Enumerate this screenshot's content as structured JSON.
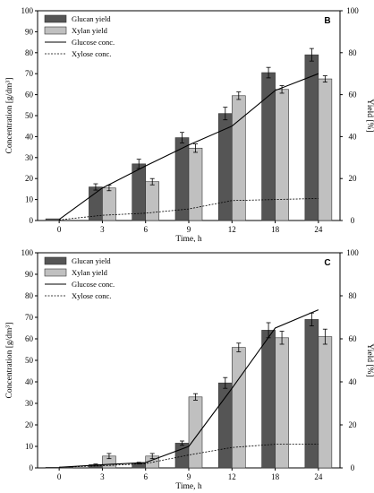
{
  "chart_data": [
    {
      "type": "bar",
      "panel_label": "B",
      "categories": [
        "0",
        "3",
        "6",
        "9",
        "12",
        "18",
        "24"
      ],
      "xlabel": "Time, h",
      "ylabel": "Concentration [g/dm³]",
      "y2label": "Yield [%]",
      "ylim": [
        0,
        100
      ],
      "y2lim": [
        0,
        100
      ],
      "yticks": [
        0,
        10,
        20,
        30,
        40,
        50,
        60,
        70,
        80,
        90,
        100
      ],
      "y2ticks": [
        0,
        20,
        40,
        60,
        80,
        100
      ],
      "legend_position": "top-left",
      "series": [
        {
          "name": "Glucan yield",
          "kind": "bar",
          "axis": "right",
          "color": "#555555",
          "values": [
            0.8,
            16,
            27,
            39.5,
            51,
            70.5,
            79
          ],
          "errors": [
            0,
            1.5,
            2.2,
            2.5,
            3,
            2.5,
            3
          ]
        },
        {
          "name": "Xylan yield",
          "kind": "bar",
          "axis": "right",
          "color": "#c0c0c0",
          "values": [
            null,
            15.5,
            18.5,
            34.5,
            59.5,
            62.5,
            67.5
          ],
          "errors": [
            0,
            1.3,
            1.5,
            2,
            1.8,
            1.8,
            1.5
          ]
        },
        {
          "name": "Glucose conc.",
          "kind": "line",
          "axis": "left",
          "style": "solid",
          "values": [
            0.5,
            15.5,
            26,
            36,
            45,
            62,
            70
          ]
        },
        {
          "name": "Xylose conc.",
          "kind": "line",
          "axis": "left",
          "style": "dashed",
          "values": [
            0.3,
            2.5,
            3.5,
            5.5,
            9.5,
            10,
            10.5
          ]
        }
      ]
    },
    {
      "type": "bar",
      "panel_label": "C",
      "categories": [
        "0",
        "3",
        "6",
        "9",
        "12",
        "18",
        "24"
      ],
      "xlabel": "Time, h",
      "ylabel": "Concentration [g/dm³]",
      "y2label": "Yield [%]",
      "ylim": [
        0,
        100
      ],
      "y2lim": [
        0,
        100
      ],
      "yticks": [
        0,
        10,
        20,
        30,
        40,
        50,
        60,
        70,
        80,
        90,
        100
      ],
      "y2ticks": [
        0,
        20,
        40,
        60,
        80,
        100
      ],
      "legend_position": "top-left",
      "series": [
        {
          "name": "Glucan yield",
          "kind": "bar",
          "axis": "right",
          "color": "#555555",
          "values": [
            0.3,
            1.5,
            2.2,
            11.5,
            39.5,
            64,
            69
          ],
          "errors": [
            0,
            0.3,
            0.4,
            1,
            2.5,
            3.5,
            3
          ]
        },
        {
          "name": "Xylan yield",
          "kind": "bar",
          "axis": "right",
          "color": "#c0c0c0",
          "values": [
            0.3,
            5.5,
            5.5,
            33,
            56,
            60.5,
            61
          ],
          "errors": [
            0,
            1.2,
            1.2,
            1.5,
            2,
            3,
            3.5
          ]
        },
        {
          "name": "Glucose conc.",
          "kind": "line",
          "axis": "left",
          "style": "solid",
          "values": [
            0.3,
            1.5,
            2.5,
            10,
            37,
            65,
            73.5
          ]
        },
        {
          "name": "Xylose conc.",
          "kind": "line",
          "axis": "left",
          "style": "dashed",
          "values": [
            0.3,
            1,
            2,
            6,
            9.5,
            11,
            11
          ]
        }
      ]
    }
  ]
}
